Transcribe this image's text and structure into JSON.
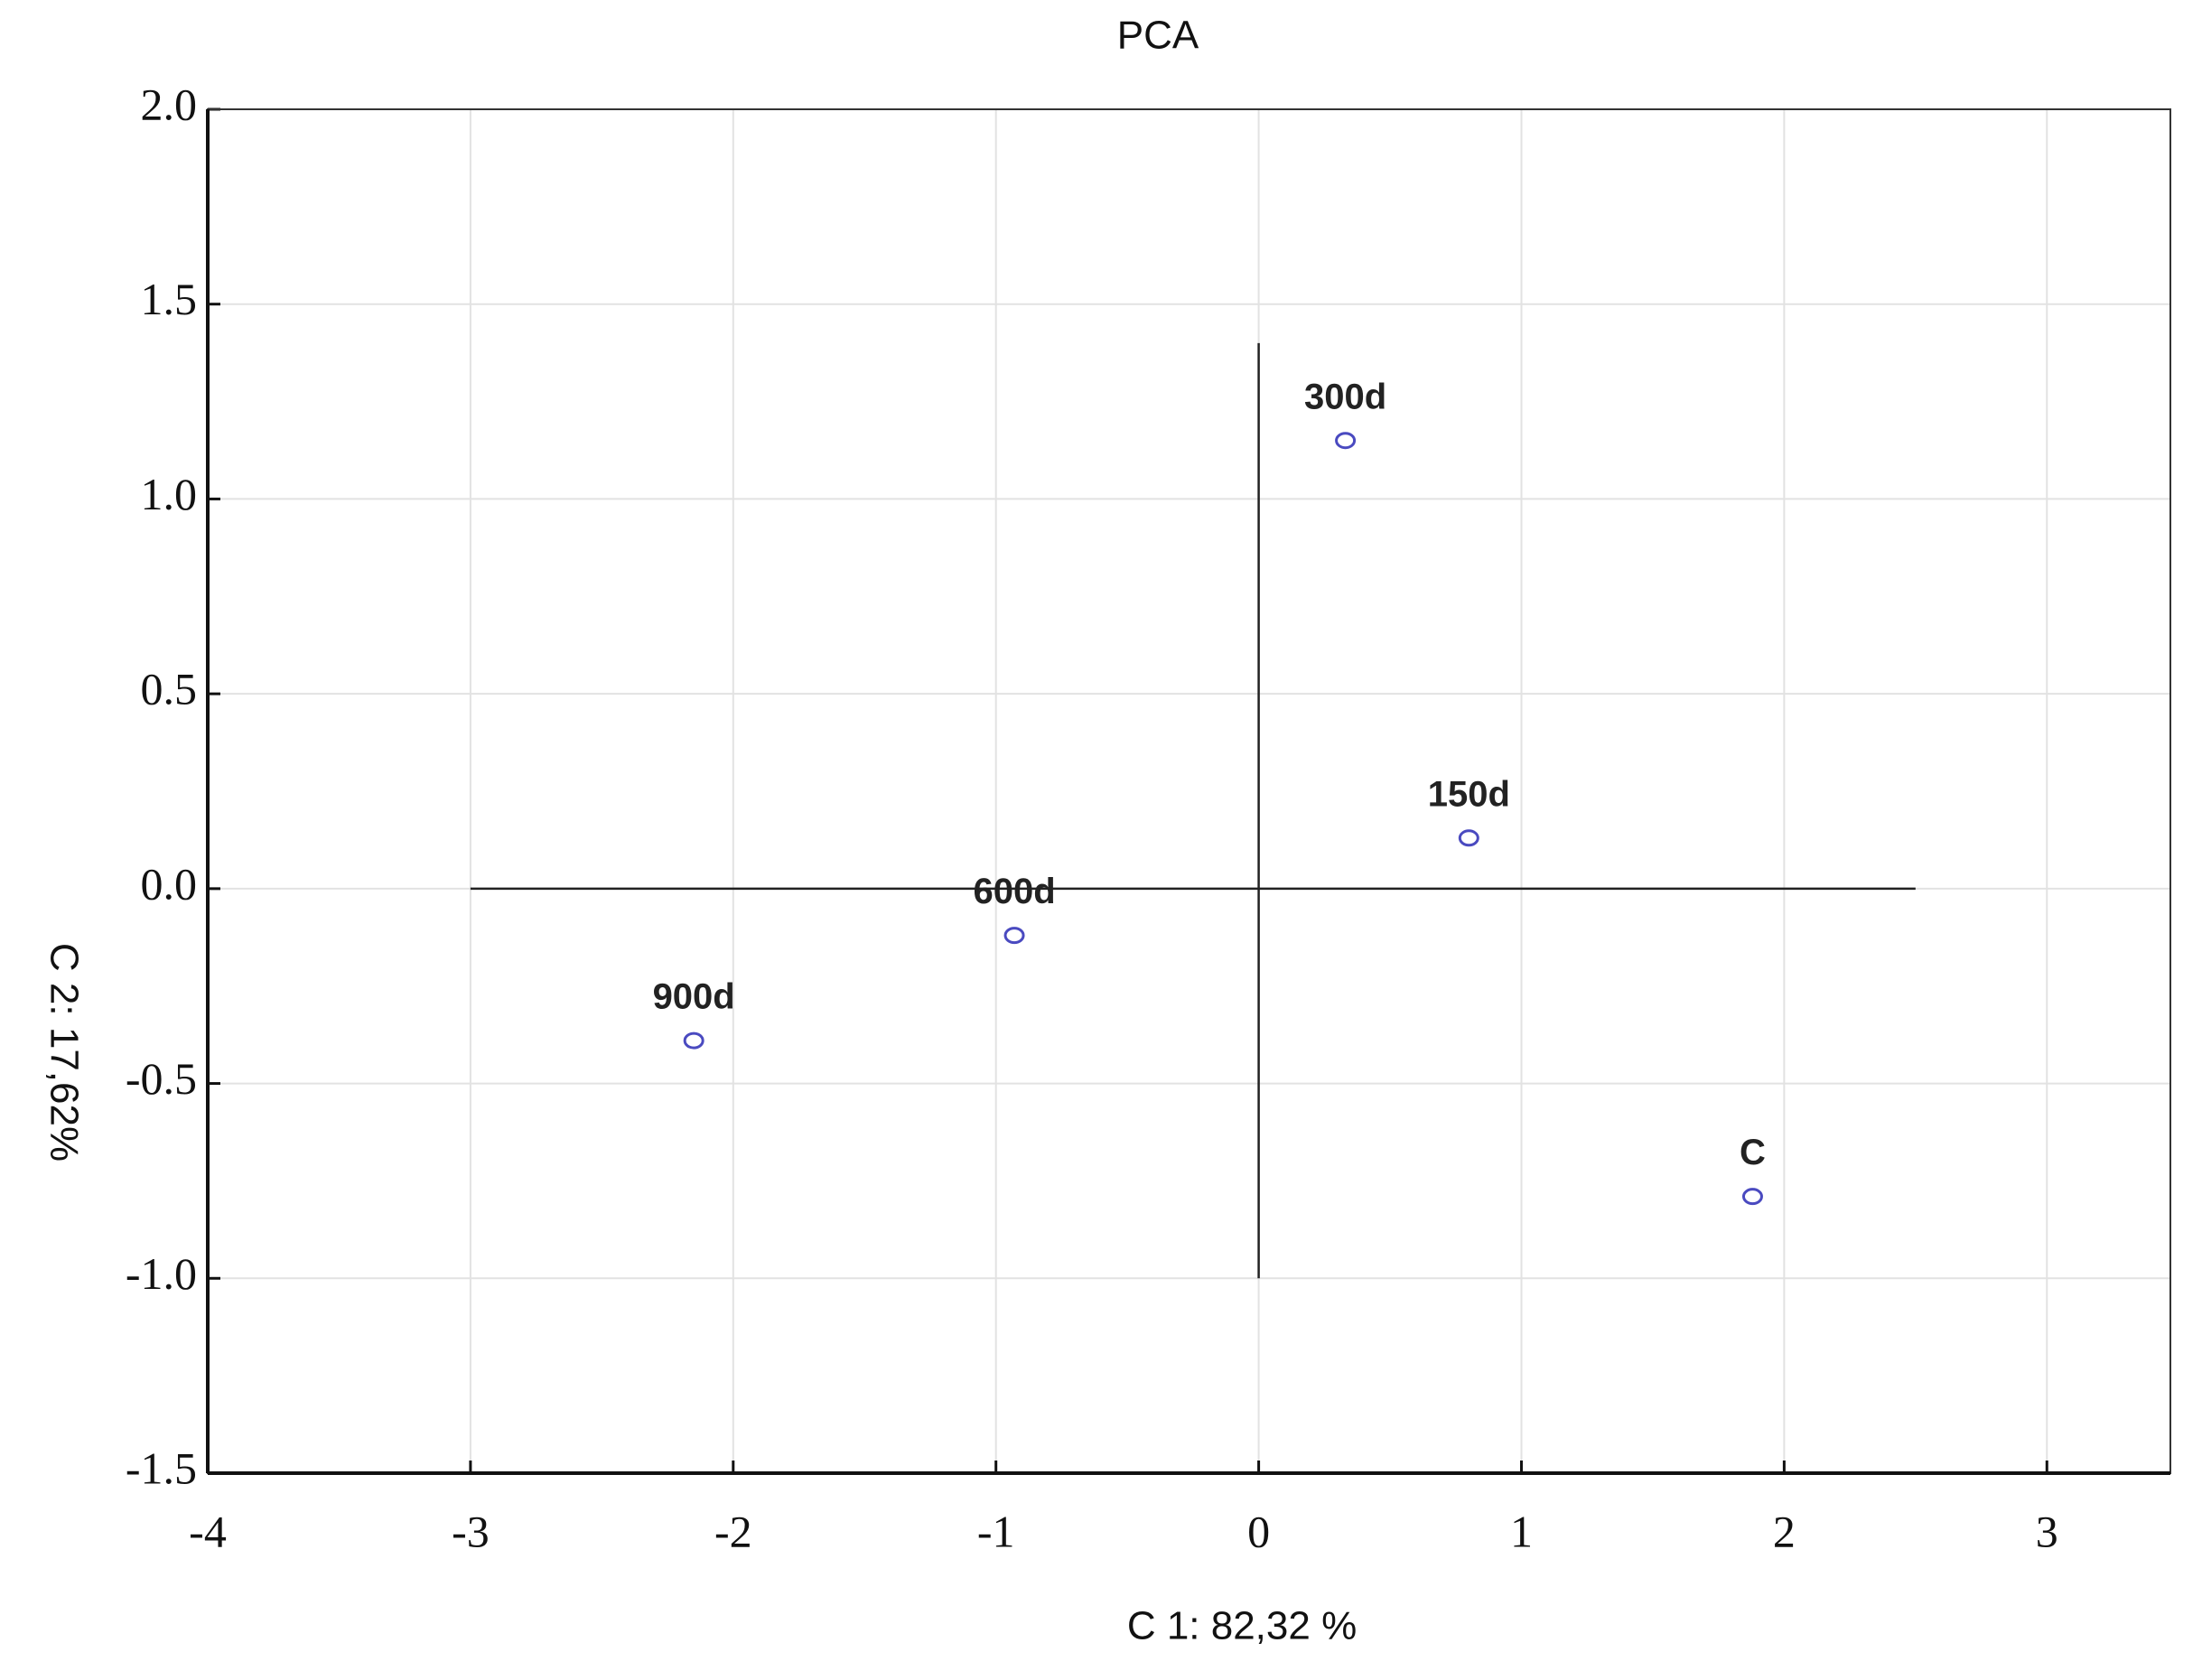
{
  "chart_data": {
    "type": "scatter",
    "title": "PCA",
    "x_label": "C 1: 82,32 %",
    "y_label": "C 2: 17,62%",
    "labels": [
      "300d",
      "150d",
      "600d",
      "900d",
      "C"
    ],
    "x": [
      0.33,
      0.8,
      -0.93,
      -2.15,
      1.88
    ],
    "y": [
      1.15,
      0.13,
      -0.12,
      -0.39,
      -0.79
    ],
    "color": "#4a4ac0",
    "xlim": [
      -4,
      3.47
    ],
    "xticks": [
      -4,
      -3,
      -2,
      -1,
      0,
      1,
      2,
      3
    ],
    "ylim": [
      -1.5,
      2.0
    ],
    "yticks": [
      {
        "value": 2.0,
        "label": "2.0"
      },
      1.5,
      {
        "value": 1.0,
        "label": "1.0"
      },
      0.5,
      {
        "value": 0.0,
        "label": "0.0"
      },
      -0.5,
      {
        "value": -1.0,
        "label": "-1.0"
      },
      -1.5
    ],
    "grid": true,
    "reference_lines": [
      {
        "x": [
          -3,
          2.5
        ],
        "y": [
          0,
          0
        ]
      },
      {
        "x": [
          0,
          0
        ],
        "y": [
          -1,
          1.4
        ]
      }
    ]
  }
}
